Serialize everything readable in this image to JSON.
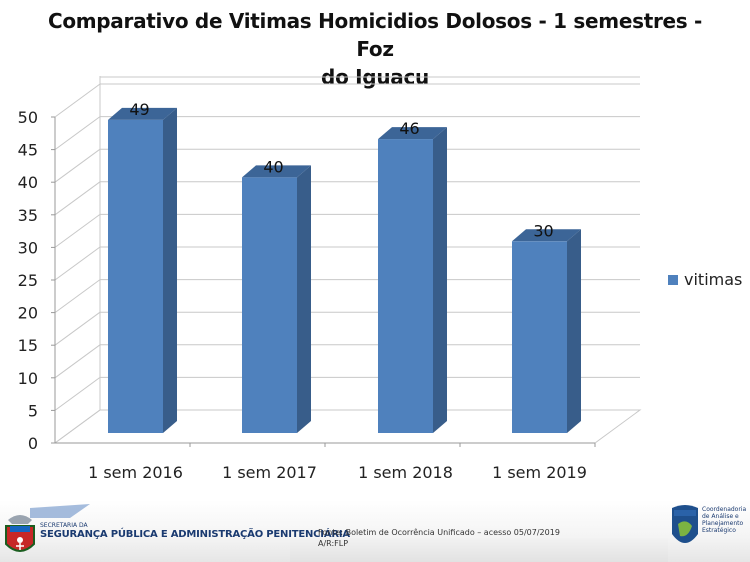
{
  "chart_data": {
    "type": "bar",
    "title": "Comparativo de Vitimas Homicidios Dolosos - 1 semestres - Foz do Iguacu",
    "categories": [
      "1 sem 2016",
      "1 sem 2017",
      "1 sem 2018",
      "1 sem 2019"
    ],
    "series": [
      {
        "name": "vitimas",
        "values": [
          49,
          40,
          46,
          30
        ],
        "color": "#4f81bd"
      }
    ],
    "xlabel": "",
    "ylabel": "",
    "ylim": [
      0,
      50
    ],
    "yticks": [
      0,
      5,
      10,
      15,
      20,
      25,
      30,
      35,
      40,
      45,
      50
    ],
    "grid": true,
    "legend_position": "right",
    "style": "3d-column",
    "data_labels": [
      "49",
      "40",
      "46",
      "30"
    ]
  },
  "title": {
    "line1": "Comparativo de Vitimas Homicidios Dolosos - 1 semestres - Foz",
    "line2": "do Iguacu"
  },
  "legend": {
    "label": "vitimas"
  },
  "footer": {
    "secretaria_small": "SECRETARIA DA",
    "secretaria_big": "SEGURANÇA PÚBLICA E ADMINISTRAÇÃO PENITENCIÁRIA",
    "fonte": "Fonte: Boletim de Ocorrência Unificado – acesso 05/07/2019",
    "autor": "A/R:FLP",
    "cape_lines": [
      "Coordenadoria",
      "de Análise e",
      "Planejamento",
      "Estratégico"
    ],
    "cape_badge": "CAPE"
  },
  "colors": {
    "bar_front": "#4f81bd",
    "bar_side": "#385d8a",
    "bar_top": "#3c6597",
    "grid": "#c8c8c8"
  }
}
